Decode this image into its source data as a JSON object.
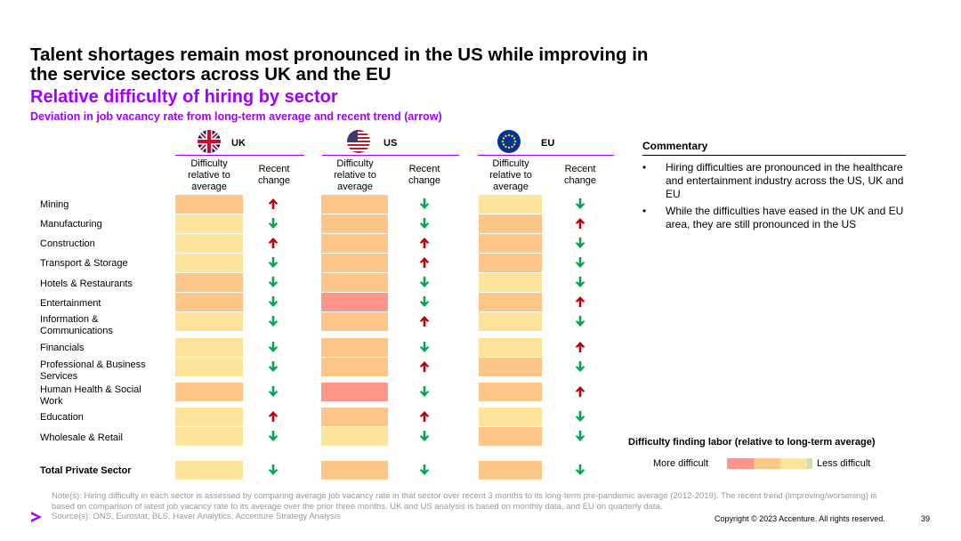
{
  "title": "Talent shortages remain most pronounced in the US while improving in the service sectors across UK and the EU",
  "subtitle": "Relative difficulty of hiring by sector",
  "description": "Deviation in job vacancy rate from long-term average and recent trend (arrow)",
  "regions": [
    {
      "name": "UK",
      "flag": "uk-flag-icon"
    },
    {
      "name": "US",
      "flag": "us-flag-icon"
    },
    {
      "name": "EU",
      "flag": "eu-flag-icon"
    }
  ],
  "column_headers": {
    "difficulty": "Difficulty relative to average",
    "change": "Recent change"
  },
  "colors": {
    "accent": "#a100ff",
    "more_difficult": "#fe958a",
    "difficult": "#fec589",
    "neutral": "#fee49a",
    "less_difficult": "#c6dfb8",
    "arrow_up": "#c00000",
    "arrow_down": "#00a651"
  },
  "sectors": [
    {
      "label": "Mining",
      "uk": {
        "level": "difficult",
        "trend": "up"
      },
      "us": {
        "level": "difficult",
        "trend": "down"
      },
      "eu": {
        "level": "neutral",
        "trend": "down"
      }
    },
    {
      "label": "Manufacturing",
      "uk": {
        "level": "neutral",
        "trend": "down"
      },
      "us": {
        "level": "difficult",
        "trend": "down"
      },
      "eu": {
        "level": "difficult",
        "trend": "up"
      }
    },
    {
      "label": "Construction",
      "uk": {
        "level": "neutral",
        "trend": "up"
      },
      "us": {
        "level": "difficult",
        "trend": "up"
      },
      "eu": {
        "level": "difficult",
        "trend": "down"
      }
    },
    {
      "label": "Transport & Storage",
      "uk": {
        "level": "neutral",
        "trend": "down"
      },
      "us": {
        "level": "difficult",
        "trend": "up"
      },
      "eu": {
        "level": "difficult",
        "trend": "down"
      }
    },
    {
      "label": "Hotels & Restaurants",
      "uk": {
        "level": "difficult",
        "trend": "down"
      },
      "us": {
        "level": "difficult",
        "trend": "down"
      },
      "eu": {
        "level": "neutral",
        "trend": "down"
      }
    },
    {
      "label": "Entertainment",
      "uk": {
        "level": "difficult",
        "trend": "down"
      },
      "us": {
        "level": "more_difficult",
        "trend": "down"
      },
      "eu": {
        "level": "difficult",
        "trend": "up"
      }
    },
    {
      "label": "Information & Communications",
      "uk": {
        "level": "neutral",
        "trend": "down"
      },
      "us": {
        "level": "difficult",
        "trend": "up"
      },
      "eu": {
        "level": "neutral",
        "trend": "down"
      }
    },
    {
      "label": "Financials",
      "uk": {
        "level": "neutral",
        "trend": "down"
      },
      "us": {
        "level": "difficult",
        "trend": "down"
      },
      "eu": {
        "level": "neutral",
        "trend": "up"
      }
    },
    {
      "label": "Professional & Business Services",
      "uk": {
        "level": "neutral",
        "trend": "down"
      },
      "us": {
        "level": "difficult",
        "trend": "up"
      },
      "eu": {
        "level": "difficult",
        "trend": "down"
      }
    },
    {
      "label": "Human Health & Social Work",
      "uk": {
        "level": "difficult",
        "trend": "down"
      },
      "us": {
        "level": "more_difficult",
        "trend": "down"
      },
      "eu": {
        "level": "difficult",
        "trend": "up"
      }
    },
    {
      "label": "Education",
      "uk": {
        "level": "neutral",
        "trend": "up"
      },
      "us": {
        "level": "difficult",
        "trend": "up"
      },
      "eu": {
        "level": "neutral",
        "trend": "down"
      }
    },
    {
      "label": "Wholesale & Retail",
      "uk": {
        "level": "neutral",
        "trend": "down"
      },
      "us": {
        "level": "neutral",
        "trend": "down"
      },
      "eu": {
        "level": "difficult",
        "trend": "down"
      }
    }
  ],
  "total": {
    "label": "Total Private Sector",
    "uk": {
      "level": "neutral",
      "trend": "down"
    },
    "us": {
      "level": "difficult",
      "trend": "down"
    },
    "eu": {
      "level": "difficult",
      "trend": "down"
    }
  },
  "commentary": {
    "title": "Commentary",
    "bullets": [
      "Hiring difficulties are pronounced in the healthcare and entertainment industry across the US, UK and EU",
      "While the difficulties have eased in the UK and EU area, they are still pronounced in the US"
    ]
  },
  "legend": {
    "title": "Difficulty finding labor (relative to long-term average)",
    "more": "More difficult",
    "less": "Less difficult"
  },
  "note": "Note(s): Hiring difficulty in each sector is assessed by comparing average job vacancy rate in that sector over recent 3 months to its long-term pre-pandemic average (2012-2019). The recent trend (improving/worsening) is based on comparison of latest job vacancy rate to its average over the prior three months. UK and US analysis is based on monthly data, and EU on quarterly data.",
  "source": "Source(s): ONS, Eurostat, BLS, Haver Analytics, Accenture Strategy Analysis",
  "copyright": "Copyright © 2023 Accenture. All rights reserved.",
  "page_number": "39"
}
